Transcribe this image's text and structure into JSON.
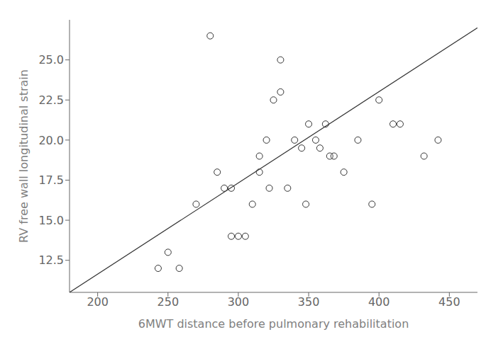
{
  "chart_data": {
    "type": "scatter",
    "xlabel": "6MWT distance before pulmonary rehabilitation",
    "ylabel": "RV free wall longitudinal strain",
    "xlim": [
      180,
      470
    ],
    "ylim": [
      10.5,
      27.5
    ],
    "xticks": [
      200,
      250,
      300,
      350,
      400,
      450
    ],
    "yticks": [
      12.5,
      {
        "value": 15,
        "label": "15.0"
      },
      17.5,
      {
        "value": 20,
        "label": "20.0"
      },
      22.5,
      {
        "value": 25,
        "label": "25.0"
      }
    ],
    "series": [
      {
        "type": "scatter",
        "marker": "circle",
        "color": "#333333",
        "x": [
          243,
          250,
          258,
          270,
          280,
          285,
          290,
          295,
          295,
          300,
          305,
          310,
          315,
          315,
          320,
          322,
          325,
          330,
          330,
          335,
          340,
          345,
          348,
          350,
          355,
          358,
          362,
          365,
          368,
          375,
          385,
          395,
          400,
          410,
          415,
          432,
          442
        ],
        "values": [
          12.0,
          13.0,
          12.0,
          16.0,
          26.5,
          18.0,
          17.0,
          17.0,
          14.0,
          14.0,
          14.0,
          16.0,
          19.0,
          18.0,
          20.0,
          17.0,
          22.5,
          25.0,
          23.0,
          17.0,
          20.0,
          19.5,
          16.0,
          21.0,
          20.0,
          19.5,
          21.0,
          19.0,
          19.0,
          18.0,
          20.0,
          16.0,
          22.5,
          21.0,
          21.0,
          19.0,
          20.0
        ]
      },
      {
        "type": "line",
        "color": "#333333",
        "x": [
          180,
          470
        ],
        "values": [
          10.5,
          27.0
        ]
      }
    ]
  }
}
